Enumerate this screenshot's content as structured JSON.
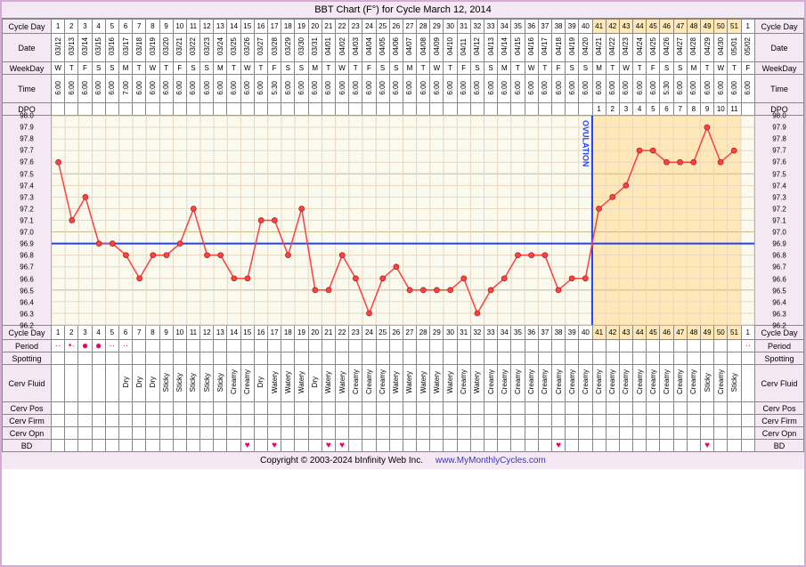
{
  "title": "BBT Chart (F°) for Cycle March 12, 2014",
  "footer_copyright": "Copyright © 2003-2024 bInfinity Web Inc.",
  "footer_link": "www.MyMonthlyCycles.com",
  "labels": {
    "cycle_day": "Cycle Day",
    "date": "Date",
    "weekday": "WeekDay",
    "time": "Time",
    "dpo": "DPO",
    "period": "Period",
    "spotting": "Spotting",
    "cerv_fluid": "Cerv Fluid",
    "cerv_pos": "Cerv Pos",
    "cerv_firm": "Cerv Firm",
    "cerv_opn": "Cerv Opn",
    "bd": "BD"
  },
  "ovulation_label": "OVULATION",
  "ovulation_day": 40,
  "coverline_temp": 96.9,
  "temps_y": {
    "min": 96.2,
    "max": 98.0,
    "step": 0.1,
    "ticks": [
      98.0,
      97.9,
      97.8,
      97.7,
      97.6,
      97.5,
      97.4,
      97.3,
      97.2,
      97.1,
      97.0,
      96.9,
      96.8,
      96.7,
      96.6,
      96.5,
      96.4,
      96.3,
      96.2
    ]
  },
  "colors": {
    "bg_pre": "#fafaef",
    "bg_luteal": "#ffe8b8",
    "grid_minor": "#e8d8c0",
    "grid_major": "#c8b890",
    "line": "#ff4040",
    "point_fill": "#ff4040",
    "point_stroke": "#a02020",
    "coverline": "#2040ff",
    "ovulation_line": "#2040ff",
    "header_bg": "#f5e8f5",
    "border": "#888"
  },
  "days": [
    {
      "cd": 1,
      "date": "03/12",
      "wd": "W",
      "time": "6:00",
      "dpo": "",
      "temp": 97.6,
      "period": "light",
      "cf": "",
      "bd": false
    },
    {
      "cd": 2,
      "date": "03/13",
      "wd": "T",
      "time": "6:00",
      "dpo": "",
      "temp": 97.1,
      "period": "med",
      "cf": "",
      "bd": false
    },
    {
      "cd": 3,
      "date": "03/14",
      "wd": "F",
      "time": "6:00",
      "dpo": "",
      "temp": 97.3,
      "period": "heavy",
      "cf": "",
      "bd": false
    },
    {
      "cd": 4,
      "date": "03/15",
      "wd": "S",
      "time": "6:00",
      "dpo": "",
      "temp": 96.9,
      "period": "heavy",
      "cf": "",
      "bd": false
    },
    {
      "cd": 5,
      "date": "03/16",
      "wd": "S",
      "time": "6:00",
      "dpo": "",
      "temp": 96.9,
      "period": "light",
      "cf": "",
      "bd": false
    },
    {
      "cd": 6,
      "date": "03/17",
      "wd": "M",
      "time": "7:00",
      "dpo": "",
      "temp": 96.8,
      "period": "light",
      "cf": "Dry",
      "bd": false
    },
    {
      "cd": 7,
      "date": "03/18",
      "wd": "T",
      "time": "6:00",
      "dpo": "",
      "temp": 96.6,
      "period": "",
      "cf": "Dry",
      "bd": false
    },
    {
      "cd": 8,
      "date": "03/19",
      "wd": "W",
      "time": "6:00",
      "dpo": "",
      "temp": 96.8,
      "period": "",
      "cf": "Dry",
      "bd": false
    },
    {
      "cd": 9,
      "date": "03/20",
      "wd": "T",
      "time": "6:00",
      "dpo": "",
      "temp": 96.8,
      "period": "",
      "cf": "Sticky",
      "bd": false
    },
    {
      "cd": 10,
      "date": "03/21",
      "wd": "F",
      "time": "6:00",
      "dpo": "",
      "temp": 96.9,
      "period": "",
      "cf": "Sticky",
      "bd": false
    },
    {
      "cd": 11,
      "date": "03/22",
      "wd": "S",
      "time": "6:00",
      "dpo": "",
      "temp": 97.2,
      "period": "",
      "cf": "Sticky",
      "bd": false
    },
    {
      "cd": 12,
      "date": "03/23",
      "wd": "S",
      "time": "6:00",
      "dpo": "",
      "temp": 96.8,
      "period": "",
      "cf": "Sticky",
      "bd": false
    },
    {
      "cd": 13,
      "date": "03/24",
      "wd": "M",
      "time": "6:00",
      "dpo": "",
      "temp": 96.8,
      "period": "",
      "cf": "Sticky",
      "bd": false
    },
    {
      "cd": 14,
      "date": "03/25",
      "wd": "T",
      "time": "6:00",
      "dpo": "",
      "temp": 96.6,
      "period": "",
      "cf": "Creamy",
      "bd": false
    },
    {
      "cd": 15,
      "date": "03/26",
      "wd": "W",
      "time": "6:00",
      "dpo": "",
      "temp": 96.6,
      "period": "",
      "cf": "Creamy",
      "bd": true
    },
    {
      "cd": 16,
      "date": "03/27",
      "wd": "T",
      "time": "6:00",
      "dpo": "",
      "temp": 97.1,
      "period": "",
      "cf": "Dry",
      "bd": false
    },
    {
      "cd": 17,
      "date": "03/28",
      "wd": "F",
      "time": "5:30",
      "dpo": "",
      "temp": 97.1,
      "period": "",
      "cf": "Watery",
      "bd": true
    },
    {
      "cd": 18,
      "date": "03/29",
      "wd": "S",
      "time": "6:00",
      "dpo": "",
      "temp": 96.8,
      "period": "",
      "cf": "Watery",
      "bd": false
    },
    {
      "cd": 19,
      "date": "03/30",
      "wd": "S",
      "time": "6:00",
      "dpo": "",
      "temp": 97.2,
      "period": "",
      "cf": "Watery",
      "bd": false
    },
    {
      "cd": 20,
      "date": "03/31",
      "wd": "M",
      "time": "6:00",
      "dpo": "",
      "temp": 96.5,
      "period": "",
      "cf": "Dry",
      "bd": false
    },
    {
      "cd": 21,
      "date": "04/01",
      "wd": "T",
      "time": "6:00",
      "dpo": "",
      "temp": 96.5,
      "period": "",
      "cf": "Watery",
      "bd": true
    },
    {
      "cd": 22,
      "date": "04/02",
      "wd": "W",
      "time": "6:00",
      "dpo": "",
      "temp": 96.8,
      "period": "",
      "cf": "Watery",
      "bd": true
    },
    {
      "cd": 23,
      "date": "04/03",
      "wd": "T",
      "time": "6:00",
      "dpo": "",
      "temp": 96.6,
      "period": "",
      "cf": "Creamy",
      "bd": false
    },
    {
      "cd": 24,
      "date": "04/04",
      "wd": "F",
      "time": "6:00",
      "dpo": "",
      "temp": 96.3,
      "period": "",
      "cf": "Creamy",
      "bd": false
    },
    {
      "cd": 25,
      "date": "04/05",
      "wd": "S",
      "time": "6:00",
      "dpo": "",
      "temp": 96.6,
      "period": "",
      "cf": "Creamy",
      "bd": false
    },
    {
      "cd": 26,
      "date": "04/06",
      "wd": "S",
      "time": "6:00",
      "dpo": "",
      "temp": 96.7,
      "period": "",
      "cf": "Watery",
      "bd": false
    },
    {
      "cd": 27,
      "date": "04/07",
      "wd": "M",
      "time": "6:00",
      "dpo": "",
      "temp": 96.5,
      "period": "",
      "cf": "Watery",
      "bd": false
    },
    {
      "cd": 28,
      "date": "04/08",
      "wd": "T",
      "time": "6:00",
      "dpo": "",
      "temp": 96.5,
      "period": "",
      "cf": "Watery",
      "bd": false
    },
    {
      "cd": 29,
      "date": "04/09",
      "wd": "W",
      "time": "6:00",
      "dpo": "",
      "temp": 96.5,
      "period": "",
      "cf": "Watery",
      "bd": false
    },
    {
      "cd": 30,
      "date": "04/10",
      "wd": "T",
      "time": "6:00",
      "dpo": "",
      "temp": 96.5,
      "period": "",
      "cf": "Watery",
      "bd": false
    },
    {
      "cd": 31,
      "date": "04/11",
      "wd": "F",
      "time": "6:00",
      "dpo": "",
      "temp": 96.6,
      "period": "",
      "cf": "Creamy",
      "bd": false
    },
    {
      "cd": 32,
      "date": "04/12",
      "wd": "S",
      "time": "6:00",
      "dpo": "",
      "temp": 96.3,
      "period": "",
      "cf": "Watery",
      "bd": false
    },
    {
      "cd": 33,
      "date": "04/13",
      "wd": "S",
      "time": "6:00",
      "dpo": "",
      "temp": 96.5,
      "period": "",
      "cf": "Creamy",
      "bd": false
    },
    {
      "cd": 34,
      "date": "04/14",
      "wd": "M",
      "time": "6:00",
      "dpo": "",
      "temp": 96.6,
      "period": "",
      "cf": "Creamy",
      "bd": false
    },
    {
      "cd": 35,
      "date": "04/15",
      "wd": "T",
      "time": "6:00",
      "dpo": "",
      "temp": 96.8,
      "period": "",
      "cf": "Creamy",
      "bd": false
    },
    {
      "cd": 36,
      "date": "04/16",
      "wd": "W",
      "time": "6:00",
      "dpo": "",
      "temp": 96.8,
      "period": "",
      "cf": "Creamy",
      "bd": false
    },
    {
      "cd": 37,
      "date": "04/17",
      "wd": "T",
      "time": "6:00",
      "dpo": "",
      "temp": 96.8,
      "period": "",
      "cf": "Creamy",
      "bd": false
    },
    {
      "cd": 38,
      "date": "04/18",
      "wd": "F",
      "time": "6:00",
      "dpo": "",
      "temp": 96.5,
      "period": "",
      "cf": "Creamy",
      "bd": true
    },
    {
      "cd": 39,
      "date": "04/19",
      "wd": "S",
      "time": "6:00",
      "dpo": "",
      "temp": 96.6,
      "period": "",
      "cf": "Creamy",
      "bd": false
    },
    {
      "cd": 40,
      "date": "04/20",
      "wd": "S",
      "time": "6:00",
      "dpo": "",
      "temp": 96.6,
      "period": "",
      "cf": "Creamy",
      "bd": false
    },
    {
      "cd": 41,
      "date": "04/21",
      "wd": "M",
      "time": "6:00",
      "dpo": 1,
      "temp": 97.2,
      "period": "",
      "cf": "Creamy",
      "bd": false
    },
    {
      "cd": 42,
      "date": "04/22",
      "wd": "T",
      "time": "6:00",
      "dpo": 2,
      "temp": 97.3,
      "period": "",
      "cf": "Creamy",
      "bd": false
    },
    {
      "cd": 43,
      "date": "04/23",
      "wd": "W",
      "time": "6:00",
      "dpo": 3,
      "temp": 97.4,
      "period": "",
      "cf": "Creamy",
      "bd": false
    },
    {
      "cd": 44,
      "date": "04/24",
      "wd": "T",
      "time": "6:00",
      "dpo": 4,
      "temp": 97.7,
      "period": "",
      "cf": "Creamy",
      "bd": false
    },
    {
      "cd": 45,
      "date": "04/25",
      "wd": "F",
      "time": "6:00",
      "dpo": 5,
      "temp": 97.7,
      "period": "",
      "cf": "Creamy",
      "bd": false
    },
    {
      "cd": 46,
      "date": "04/26",
      "wd": "S",
      "time": "5:30",
      "dpo": 6,
      "temp": 97.6,
      "period": "",
      "cf": "Creamy",
      "bd": false
    },
    {
      "cd": 47,
      "date": "04/27",
      "wd": "S",
      "time": "6:00",
      "dpo": 7,
      "temp": 97.6,
      "period": "",
      "cf": "Creamy",
      "bd": false
    },
    {
      "cd": 48,
      "date": "04/28",
      "wd": "M",
      "time": "6:00",
      "dpo": 8,
      "temp": 97.6,
      "period": "",
      "cf": "Creamy",
      "bd": false
    },
    {
      "cd": 49,
      "date": "04/29",
      "wd": "T",
      "time": "6:00",
      "dpo": 9,
      "temp": 97.9,
      "period": "",
      "cf": "Sticky",
      "bd": true
    },
    {
      "cd": 50,
      "date": "04/30",
      "wd": "W",
      "time": "6:00",
      "dpo": 10,
      "temp": 97.6,
      "period": "",
      "cf": "Creamy",
      "bd": false
    },
    {
      "cd": 51,
      "date": "05/01",
      "wd": "T",
      "time": "6:00",
      "dpo": 11,
      "temp": 97.7,
      "period": "",
      "cf": "Sticky",
      "bd": false
    },
    {
      "cd": 1,
      "date": "05/02",
      "wd": "F",
      "time": "6:00",
      "dpo": "",
      "temp": null,
      "period": "light",
      "cf": "",
      "bd": false,
      "next_cycle": true
    }
  ]
}
